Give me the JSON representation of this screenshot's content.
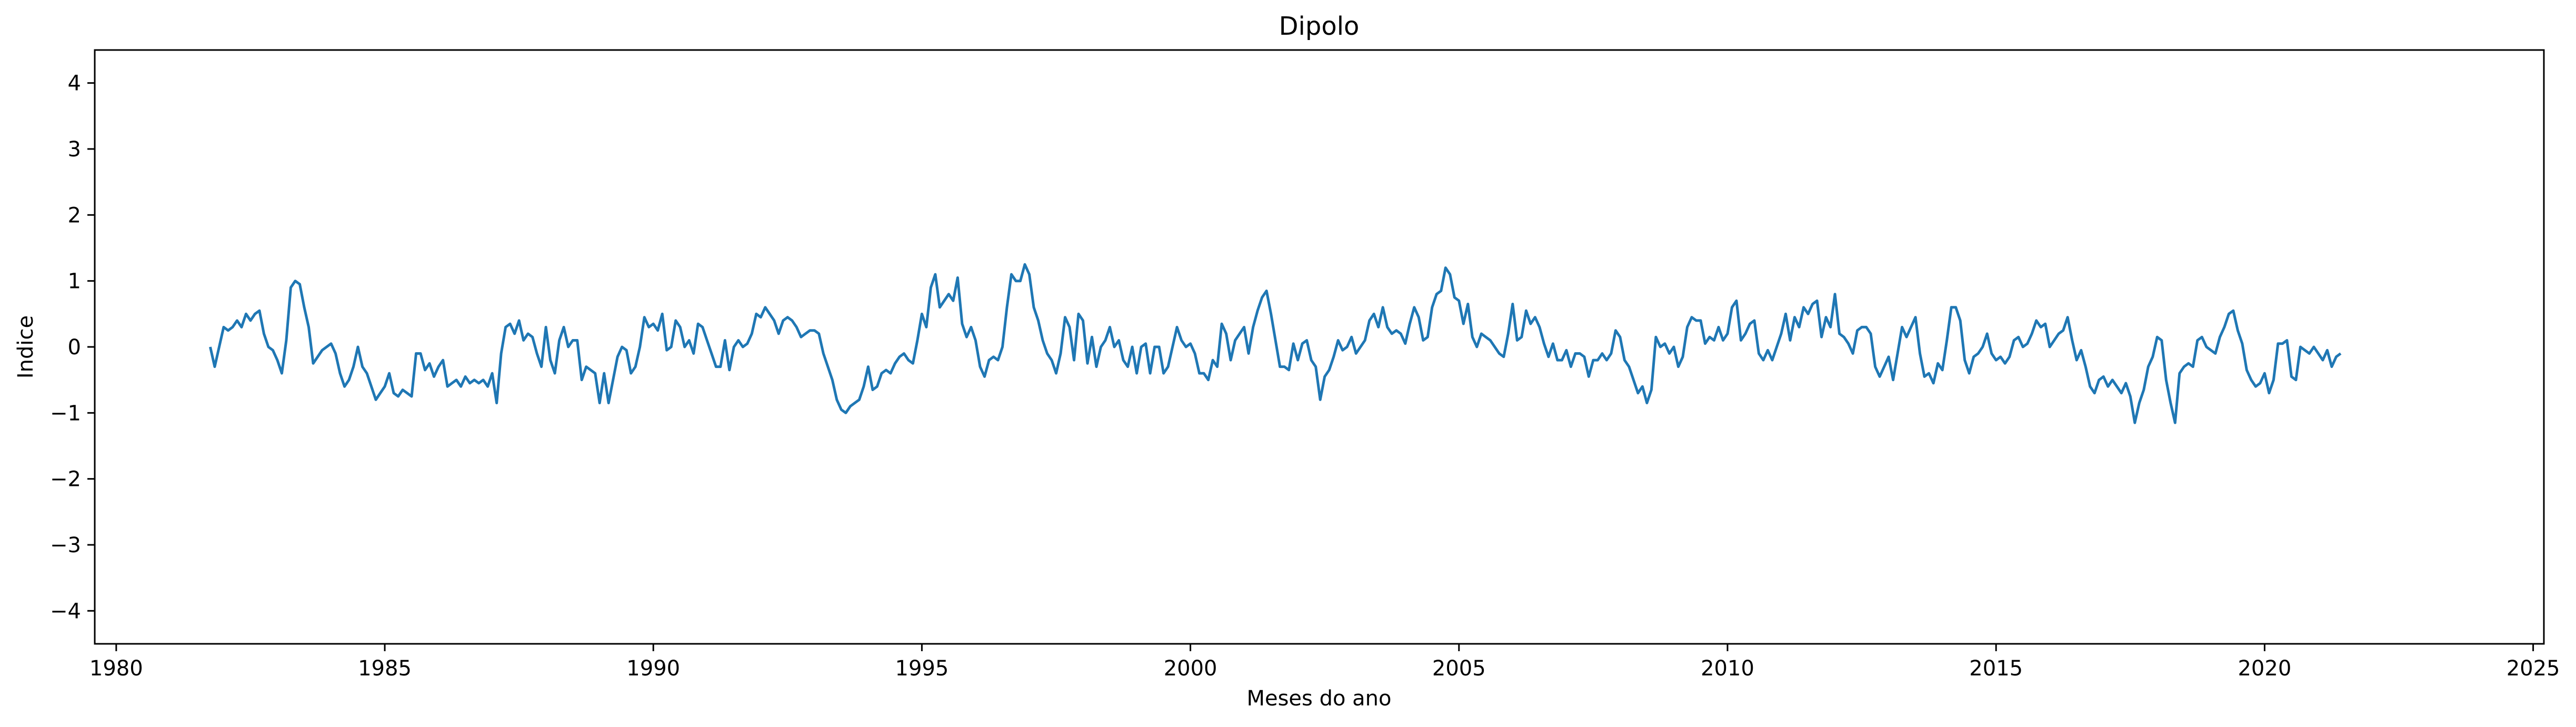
{
  "chart_data": {
    "type": "line",
    "title": "Dipolo",
    "xlabel": "Meses do ano",
    "ylabel": "Indice",
    "xlim": [
      1979.6,
      2025.2
    ],
    "ylim": [
      -4.5,
      4.5
    ],
    "x_ticks": [
      1980,
      1985,
      1990,
      1995,
      2000,
      2005,
      2010,
      2015,
      2020,
      2025
    ],
    "y_ticks": [
      -4,
      -3,
      -2,
      -1,
      0,
      1,
      2,
      3,
      4
    ],
    "grid": false,
    "line_color": "#1f77b4",
    "series": [
      {
        "x_start": 1981.75,
        "x_step": 0.0833333,
        "values": [
          0.0,
          -0.3,
          0.0,
          0.3,
          0.25,
          0.3,
          0.4,
          0.3,
          0.5,
          0.4,
          0.5,
          0.55,
          0.2,
          0.0,
          -0.05,
          -0.2,
          -0.4,
          0.1,
          0.9,
          1.0,
          0.95,
          0.6,
          0.3,
          -0.25,
          -0.15,
          -0.05,
          0.0,
          0.05,
          -0.1,
          -0.4,
          -0.6,
          -0.5,
          -0.3,
          0.0,
          -0.3,
          -0.4,
          -0.6,
          -0.8,
          -0.7,
          -0.6,
          -0.4,
          -0.7,
          -0.75,
          -0.65,
          -0.7,
          -0.75,
          -0.1,
          -0.1,
          -0.35,
          -0.25,
          -0.45,
          -0.3,
          -0.2,
          -0.6,
          -0.55,
          -0.5,
          -0.6,
          -0.45,
          -0.55,
          -0.5,
          -0.55,
          -0.5,
          -0.6,
          -0.4,
          -0.85,
          -0.1,
          0.3,
          0.35,
          0.2,
          0.4,
          0.1,
          0.2,
          0.15,
          -0.1,
          -0.3,
          0.3,
          -0.2,
          -0.4,
          0.1,
          0.3,
          0.0,
          0.1,
          0.1,
          -0.5,
          -0.3,
          -0.35,
          -0.4,
          -0.85,
          -0.4,
          -0.85,
          -0.5,
          -0.15,
          0.0,
          -0.05,
          -0.4,
          -0.3,
          0.0,
          0.45,
          0.3,
          0.35,
          0.25,
          0.5,
          -0.05,
          0.0,
          0.4,
          0.3,
          0.0,
          0.1,
          -0.1,
          0.35,
          0.3,
          0.1,
          -0.1,
          -0.3,
          -0.3,
          0.1,
          -0.35,
          0.0,
          0.1,
          0.0,
          0.05,
          0.2,
          0.5,
          0.45,
          0.6,
          0.5,
          0.4,
          0.2,
          0.4,
          0.45,
          0.4,
          0.3,
          0.15,
          0.2,
          0.25,
          0.25,
          0.2,
          -0.1,
          -0.3,
          -0.5,
          -0.8,
          -0.95,
          -1.0,
          -0.9,
          -0.85,
          -0.8,
          -0.6,
          -0.3,
          -0.65,
          -0.6,
          -0.4,
          -0.35,
          -0.4,
          -0.25,
          -0.15,
          -0.1,
          -0.2,
          -0.25,
          0.1,
          0.5,
          0.3,
          0.9,
          1.1,
          0.6,
          0.7,
          0.8,
          0.7,
          1.05,
          0.35,
          0.15,
          0.3,
          0.1,
          -0.3,
          -0.45,
          -0.2,
          -0.15,
          -0.2,
          0.0,
          0.6,
          1.1,
          1.0,
          1.0,
          1.25,
          1.1,
          0.6,
          0.4,
          0.1,
          -0.1,
          -0.2,
          -0.4,
          -0.1,
          0.45,
          0.3,
          -0.2,
          0.5,
          0.4,
          -0.25,
          0.15,
          -0.3,
          0.0,
          0.1,
          0.3,
          0.0,
          0.1,
          -0.2,
          -0.3,
          0.0,
          -0.4,
          0.0,
          0.05,
          -0.4,
          0.0,
          0.0,
          -0.4,
          -0.3,
          0.0,
          0.3,
          0.1,
          0.0,
          0.05,
          -0.1,
          -0.4,
          -0.4,
          -0.5,
          -0.2,
          -0.3,
          0.35,
          0.2,
          -0.2,
          0.1,
          0.2,
          0.3,
          -0.1,
          0.3,
          0.55,
          0.75,
          0.85,
          0.5,
          0.1,
          -0.3,
          -0.3,
          -0.35,
          0.05,
          -0.2,
          0.05,
          0.1,
          -0.2,
          -0.3,
          -0.8,
          -0.45,
          -0.35,
          -0.15,
          0.1,
          -0.05,
          0.0,
          0.15,
          -0.1,
          0.0,
          0.1,
          0.4,
          0.5,
          0.3,
          0.6,
          0.3,
          0.2,
          0.25,
          0.2,
          0.05,
          0.35,
          0.6,
          0.45,
          0.1,
          0.15,
          0.6,
          0.8,
          0.85,
          1.2,
          1.1,
          0.75,
          0.7,
          0.35,
          0.65,
          0.15,
          0.0,
          0.2,
          0.15,
          0.1,
          0.0,
          -0.1,
          -0.15,
          0.2,
          0.65,
          0.1,
          0.15,
          0.55,
          0.35,
          0.45,
          0.3,
          0.05,
          -0.15,
          0.05,
          -0.2,
          -0.2,
          -0.05,
          -0.3,
          -0.1,
          -0.1,
          -0.15,
          -0.45,
          -0.2,
          -0.2,
          -0.1,
          -0.2,
          -0.1,
          0.25,
          0.15,
          -0.2,
          -0.3,
          -0.5,
          -0.7,
          -0.6,
          -0.85,
          -0.65,
          0.15,
          0.0,
          0.05,
          -0.1,
          0.0,
          -0.3,
          -0.15,
          0.3,
          0.45,
          0.4,
          0.4,
          0.05,
          0.15,
          0.1,
          0.3,
          0.1,
          0.2,
          0.6,
          0.7,
          0.1,
          0.2,
          0.35,
          0.4,
          -0.1,
          -0.2,
          -0.05,
          -0.2,
          0.0,
          0.2,
          0.5,
          0.1,
          0.45,
          0.3,
          0.6,
          0.5,
          0.65,
          0.7,
          0.15,
          0.45,
          0.3,
          0.8,
          0.2,
          0.15,
          0.05,
          -0.1,
          0.25,
          0.3,
          0.3,
          0.2,
          -0.3,
          -0.45,
          -0.3,
          -0.15,
          -0.5,
          -0.1,
          0.3,
          0.15,
          0.3,
          0.45,
          -0.1,
          -0.45,
          -0.4,
          -0.55,
          -0.25,
          -0.35,
          0.1,
          0.6,
          0.6,
          0.4,
          -0.2,
          -0.4,
          -0.15,
          -0.1,
          0.0,
          0.2,
          -0.1,
          -0.2,
          -0.15,
          -0.25,
          -0.15,
          0.1,
          0.15,
          0.0,
          0.05,
          0.2,
          0.4,
          0.3,
          0.35,
          0.0,
          0.1,
          0.2,
          0.25,
          0.45,
          0.1,
          -0.2,
          -0.05,
          -0.3,
          -0.6,
          -0.7,
          -0.5,
          -0.45,
          -0.6,
          -0.5,
          -0.6,
          -0.7,
          -0.55,
          -0.75,
          -1.15,
          -0.85,
          -0.65,
          -0.3,
          -0.15,
          0.15,
          0.1,
          -0.5,
          -0.85,
          -1.15,
          -0.4,
          -0.3,
          -0.25,
          -0.3,
          0.1,
          0.15,
          0.0,
          -0.05,
          -0.1,
          0.15,
          0.3,
          0.5,
          0.55,
          0.25,
          0.05,
          -0.35,
          -0.5,
          -0.6,
          -0.55,
          -0.4,
          -0.7,
          -0.5,
          0.05,
          0.05,
          0.1,
          -0.45,
          -0.5,
          0.0,
          -0.05,
          -0.1,
          0.0,
          -0.1,
          -0.2,
          -0.05,
          -0.3,
          -0.15,
          -0.1
        ]
      }
    ]
  }
}
